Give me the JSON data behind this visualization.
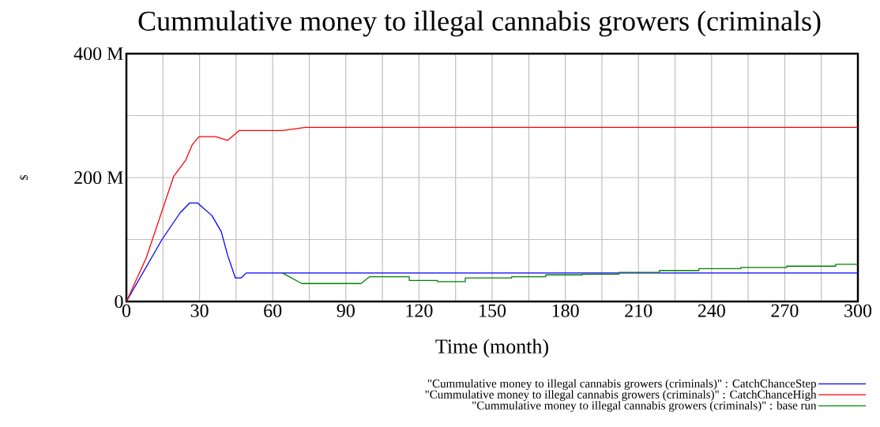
{
  "chart_data": {
    "type": "line",
    "title": "Cummulative money to illegal cannabis growers (criminals)",
    "xlabel": "Time (month)",
    "ylabel": "$",
    "xlim": [
      0,
      300
    ],
    "ylim": [
      0,
      400000000
    ],
    "xticks": [
      0,
      {
        "value": 15,
        "label": null
      },
      30,
      {
        "value": 45,
        "label": null
      },
      60,
      {
        "value": 75,
        "label": null
      },
      90,
      {
        "value": 105,
        "label": null
      },
      120,
      {
        "value": 135,
        "label": null
      },
      150,
      {
        "value": 165,
        "label": null
      },
      180,
      {
        "value": 195,
        "label": null
      },
      210,
      {
        "value": 225,
        "label": null
      },
      240,
      {
        "value": 255,
        "label": null
      },
      270,
      {
        "value": 285,
        "label": null
      },
      300
    ],
    "yticks": [
      0,
      {
        "value": 100000000,
        "label": null
      },
      {
        "value": 200000000,
        "label": "200 M"
      },
      {
        "value": 300000000,
        "label": null
      },
      {
        "value": 400000000,
        "label": "400 M"
      }
    ],
    "grid": true,
    "legend": "bottom",
    "series": [
      {
        "name": "\"Cummulative money to illegal cannabis growers (criminals)\" : CatchChanceStep",
        "color": "#0000ff",
        "x": [
          0,
          14.6,
          22,
          25.9,
          29.2,
          35,
          38.9,
          41.5,
          44.7,
          47,
          49.2,
          300
        ],
        "values": [
          0,
          100000000,
          143000000,
          159000000,
          159000000,
          139000000,
          113000000,
          75000000,
          38000000,
          38000000,
          46000000,
          46000000
        ]
      },
      {
        "name": "\"Cummulative money to illegal cannabis growers (criminals)\" : CatchChanceHigh",
        "color": "#ff0000",
        "x": [
          0,
          8.1,
          14.6,
          19.4,
          24.3,
          27,
          29.8,
          36.6,
          41.5,
          46.3,
          64,
          73.5,
          300
        ],
        "values": [
          0,
          70000000,
          146000000,
          202000000,
          228000000,
          253000000,
          266000000,
          266000000,
          260000000,
          276000000,
          276000000,
          281000000,
          281000000
        ]
      },
      {
        "name": "\"Cummulative money to illegal cannabis growers (criminals)\" : base run",
        "color": "#008000",
        "x": [
          64,
          71.9,
          96.2,
          99.8,
          116,
          116,
          127.6,
          127.6,
          139,
          139,
          158,
          158,
          172,
          172,
          187,
          187,
          202,
          202,
          218.6,
          218.6,
          234.8,
          234.8,
          252,
          252,
          270.8,
          270.8,
          290.9,
          290.9,
          300
        ],
        "values": [
          46000000,
          29000000,
          29000000,
          40000000,
          40000000,
          34000000,
          34000000,
          32000000,
          32000000,
          38000000,
          38000000,
          40000000,
          40000000,
          43000000,
          43000000,
          44000000,
          44000000,
          47000000,
          47000000,
          50000000,
          50000000,
          53000000,
          53000000,
          55000000,
          55000000,
          57000000,
          57000000,
          60000000,
          60000000
        ]
      }
    ]
  }
}
